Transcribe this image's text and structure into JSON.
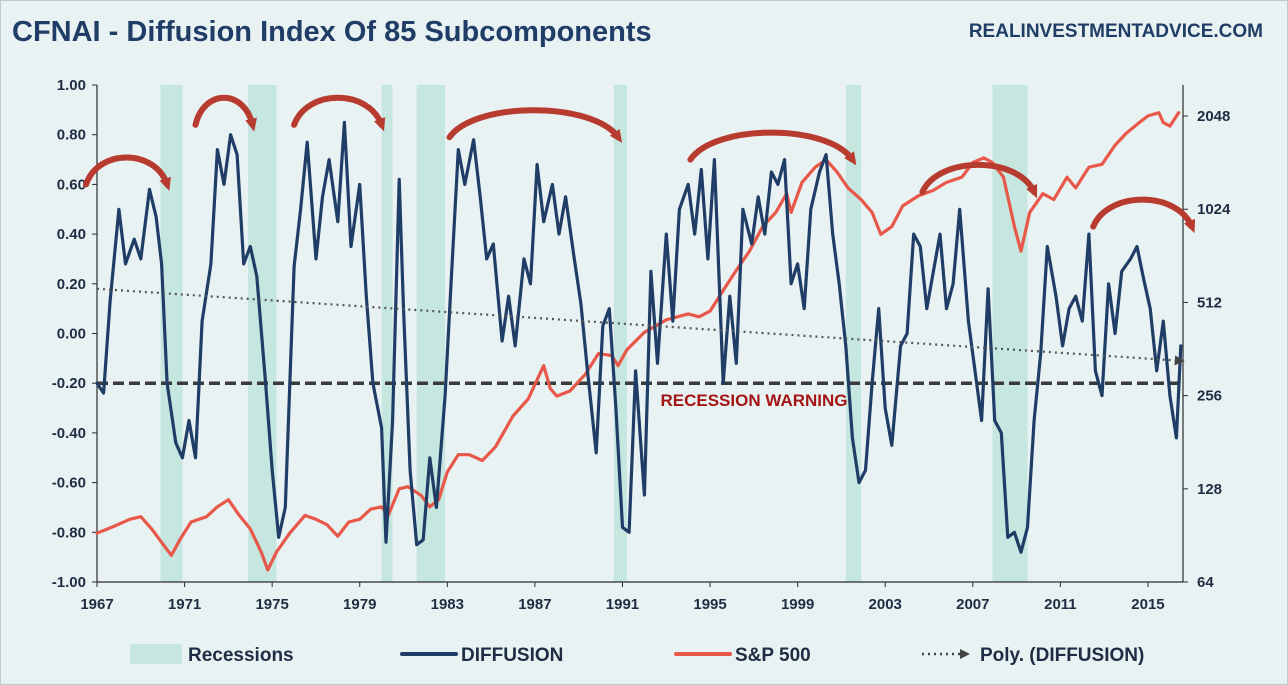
{
  "colors": {
    "background": "#e9f2f2",
    "recession": "#c6e6e0",
    "diffusion": "#1f3d66",
    "sp500": "#e8584a",
    "arc": "#b83b2f",
    "warning_line": "#3a3a3a",
    "warning_text": "#a51414",
    "title": "#1f3d66"
  },
  "header": {
    "title": "CFNAI - Diffusion Index Of 85 Subcomponents",
    "source": "REALINVESTMENTADVICE.COM"
  },
  "annotation": {
    "recession_warning": "RECESSION WARNING"
  },
  "chart_data": {
    "type": "line",
    "title": "CFNAI - Diffusion Index Of 85 Subcomponents",
    "xlim": [
      1967,
      2016.6
    ],
    "x_ticks": [
      "1967",
      "1971",
      "1975",
      "1979",
      "1983",
      "1987",
      "1991",
      "1995",
      "1999",
      "2003",
      "2007",
      "2011",
      "2015"
    ],
    "y_left": {
      "label": "DIFFUSION",
      "ylim": [
        -1.0,
        1.0
      ],
      "ticks": [
        "1.00",
        "0.80",
        "0.60",
        "0.40",
        "0.20",
        "0.00",
        "-0.20",
        "-0.40",
        "-0.60",
        "-0.80",
        "-1.00"
      ]
    },
    "y_right": {
      "label": "S&P 500",
      "scale": "log2",
      "ylim": [
        64,
        2580
      ],
      "ticks": [
        "2048",
        "1024",
        "512",
        "256",
        "128",
        "64"
      ]
    },
    "recession_threshold": -0.2,
    "recessions": [
      [
        1969.9,
        1970.9
      ],
      [
        1973.9,
        1975.2
      ],
      [
        1980.0,
        1980.5
      ],
      [
        1981.6,
        1982.9
      ],
      [
        1990.6,
        1991.2
      ],
      [
        2001.2,
        2001.9
      ],
      [
        2007.9,
        2009.5
      ]
    ],
    "arcs": [
      [
        1966.5,
        1970.2
      ],
      [
        1971.5,
        1974.1
      ],
      [
        1976.0,
        1980.0
      ],
      [
        1983.1,
        1990.8
      ],
      [
        1994.1,
        2001.5
      ],
      [
        2004.7,
        2009.8
      ],
      [
        2012.5,
        2017.0
      ]
    ],
    "series": [
      {
        "name": "DIFFUSION",
        "x": [
          1967.0,
          1967.3,
          1967.6,
          1968.0,
          1968.3,
          1968.7,
          1969.0,
          1969.4,
          1969.7,
          1969.95,
          1970.2,
          1970.6,
          1970.9,
          1971.2,
          1971.5,
          1971.8,
          1972.2,
          1972.5,
          1972.8,
          1973.1,
          1973.4,
          1973.7,
          1974.0,
          1974.3,
          1974.7,
          1975.0,
          1975.3,
          1975.6,
          1976.0,
          1976.3,
          1976.6,
          1977.0,
          1977.3,
          1977.6,
          1978.0,
          1978.3,
          1978.6,
          1979.0,
          1979.3,
          1979.6,
          1980.0,
          1980.2,
          1980.5,
          1980.8,
          1981.0,
          1981.3,
          1981.6,
          1981.9,
          1982.2,
          1982.5,
          1982.9,
          1983.2,
          1983.5,
          1983.8,
          1984.2,
          1984.5,
          1984.8,
          1985.1,
          1985.5,
          1985.8,
          1986.1,
          1986.5,
          1986.8,
          1987.1,
          1987.4,
          1987.8,
          1988.1,
          1988.4,
          1988.8,
          1989.1,
          1989.4,
          1989.8,
          1990.1,
          1990.4,
          1990.7,
          1991.0,
          1991.3,
          1991.6,
          1992.0,
          1992.3,
          1992.6,
          1993.0,
          1993.3,
          1993.6,
          1994.0,
          1994.3,
          1994.6,
          1994.9,
          1995.2,
          1995.6,
          1995.9,
          1996.2,
          1996.5,
          1996.9,
          1997.2,
          1997.5,
          1997.8,
          1998.1,
          1998.4,
          1998.7,
          1999.0,
          1999.3,
          1999.6,
          2000.0,
          2000.3,
          2000.6,
          2000.9,
          2001.2,
          2001.5,
          2001.8,
          2002.1,
          2002.4,
          2002.7,
          2003.0,
          2003.3,
          2003.7,
          2004.0,
          2004.3,
          2004.6,
          2004.9,
          2005.2,
          2005.5,
          2005.8,
          2006.1,
          2006.4,
          2006.8,
          2007.1,
          2007.4,
          2007.7,
          2008.0,
          2008.3,
          2008.6,
          2008.9,
          2009.2,
          2009.5,
          2009.8,
          2010.1,
          2010.4,
          2010.8,
          2011.1,
          2011.4,
          2011.7,
          2012.0,
          2012.3,
          2012.6,
          2012.9,
          2013.2,
          2013.5,
          2013.8,
          2014.2,
          2014.5,
          2014.8,
          2015.1,
          2015.4,
          2015.7,
          2016.0,
          2016.3,
          2016.5
        ],
        "values": [
          -0.2,
          -0.24,
          0.13,
          0.5,
          0.28,
          0.38,
          0.3,
          0.58,
          0.47,
          0.28,
          -0.2,
          -0.44,
          -0.5,
          -0.35,
          -0.5,
          0.05,
          0.28,
          0.74,
          0.6,
          0.8,
          0.72,
          0.28,
          0.35,
          0.23,
          -0.2,
          -0.55,
          -0.82,
          -0.7,
          0.27,
          0.5,
          0.77,
          0.3,
          0.55,
          0.7,
          0.45,
          0.85,
          0.35,
          0.6,
          0.15,
          -0.2,
          -0.38,
          -0.84,
          -0.35,
          0.62,
          0.1,
          -0.55,
          -0.85,
          -0.83,
          -0.5,
          -0.7,
          -0.25,
          0.25,
          0.74,
          0.6,
          0.78,
          0.55,
          0.3,
          0.36,
          -0.03,
          0.15,
          -0.05,
          0.3,
          0.2,
          0.68,
          0.45,
          0.6,
          0.4,
          0.55,
          0.3,
          0.12,
          -0.15,
          -0.48,
          0.03,
          0.1,
          -0.3,
          -0.78,
          -0.8,
          -0.15,
          -0.65,
          0.25,
          -0.12,
          0.4,
          0.05,
          0.5,
          0.6,
          0.4,
          0.66,
          0.3,
          0.7,
          -0.2,
          0.15,
          -0.12,
          0.5,
          0.36,
          0.55,
          0.4,
          0.65,
          0.6,
          0.7,
          0.2,
          0.28,
          0.1,
          0.5,
          0.65,
          0.72,
          0.4,
          0.2,
          -0.05,
          -0.42,
          -0.6,
          -0.55,
          -0.2,
          0.1,
          -0.3,
          -0.45,
          -0.05,
          0.0,
          0.4,
          0.35,
          0.1,
          0.25,
          0.4,
          0.1,
          0.2,
          0.5,
          0.05,
          -0.15,
          -0.35,
          0.18,
          -0.35,
          -0.4,
          -0.82,
          -0.8,
          -0.88,
          -0.78,
          -0.35,
          -0.08,
          0.35,
          0.15,
          -0.05,
          0.1,
          0.15,
          0.05,
          0.4,
          -0.15,
          -0.25,
          0.2,
          0.0,
          0.25,
          0.3,
          0.35,
          0.22,
          0.1,
          -0.15,
          0.05,
          -0.25,
          -0.42,
          -0.05
        ]
      },
      {
        "name": "S&P 500",
        "x": [
          1967.0,
          1967.8,
          1968.5,
          1969.0,
          1969.5,
          1970.0,
          1970.4,
          1970.8,
          1971.3,
          1972.0,
          1972.5,
          1973.0,
          1973.5,
          1974.0,
          1974.5,
          1974.8,
          1975.2,
          1975.8,
          1976.5,
          1977.0,
          1977.5,
          1978.0,
          1978.5,
          1979.0,
          1979.5,
          1980.0,
          1980.3,
          1980.8,
          1981.2,
          1981.8,
          1982.2,
          1982.6,
          1983.0,
          1983.5,
          1984.0,
          1984.6,
          1985.2,
          1986.0,
          1986.7,
          1987.4,
          1987.7,
          1988.0,
          1988.6,
          1989.3,
          1989.9,
          1990.5,
          1990.8,
          1991.2,
          1992.0,
          1993.0,
          1994.0,
          1994.5,
          1995.0,
          1995.6,
          1996.2,
          1996.8,
          1997.4,
          1998.0,
          1998.5,
          1998.7,
          1999.2,
          1999.8,
          2000.3,
          2000.8,
          2001.3,
          2001.9,
          2002.4,
          2002.8,
          2003.3,
          2003.8,
          2004.5,
          2005.2,
          2005.8,
          2006.5,
          2007.0,
          2007.5,
          2007.9,
          2008.4,
          2008.9,
          2009.2,
          2009.6,
          2010.2,
          2010.7,
          2011.3,
          2011.7,
          2012.3,
          2012.9,
          2013.5,
          2014.0,
          2014.6,
          2015.0,
          2015.5,
          2015.7,
          2016.0,
          2016.4
        ],
        "values": [
          92,
          97,
          102,
          104,
          95,
          85,
          78,
          88,
          100,
          104,
          112,
          118,
          105,
          95,
          80,
          70,
          80,
          92,
          105,
          102,
          98,
          90,
          100,
          102,
          110,
          112,
          105,
          128,
          130,
          122,
          112,
          118,
          145,
          165,
          165,
          158,
          175,
          220,
          250,
          320,
          270,
          255,
          265,
          300,
          350,
          345,
          320,
          360,
          410,
          450,
          470,
          460,
          480,
          560,
          650,
          750,
          900,
          1000,
          1150,
          1000,
          1250,
          1400,
          1480,
          1350,
          1200,
          1100,
          1000,
          850,
          900,
          1050,
          1130,
          1180,
          1250,
          1300,
          1450,
          1500,
          1450,
          1300,
          900,
          750,
          1000,
          1150,
          1100,
          1300,
          1200,
          1400,
          1430,
          1650,
          1800,
          1950,
          2050,
          2100,
          1950,
          1900,
          2100
        ]
      },
      {
        "name": "Poly. (DIFFUSION)",
        "x": [
          1967.0,
          2016.5
        ],
        "values": [
          0.18,
          -0.11
        ]
      }
    ],
    "legend": [
      {
        "kind": "area",
        "label": "Recessions"
      },
      {
        "kind": "line",
        "label": "DIFFUSION"
      },
      {
        "kind": "line",
        "label": "S&P 500"
      },
      {
        "kind": "dotted-arrow",
        "label": "Poly. (DIFFUSION)"
      }
    ]
  }
}
